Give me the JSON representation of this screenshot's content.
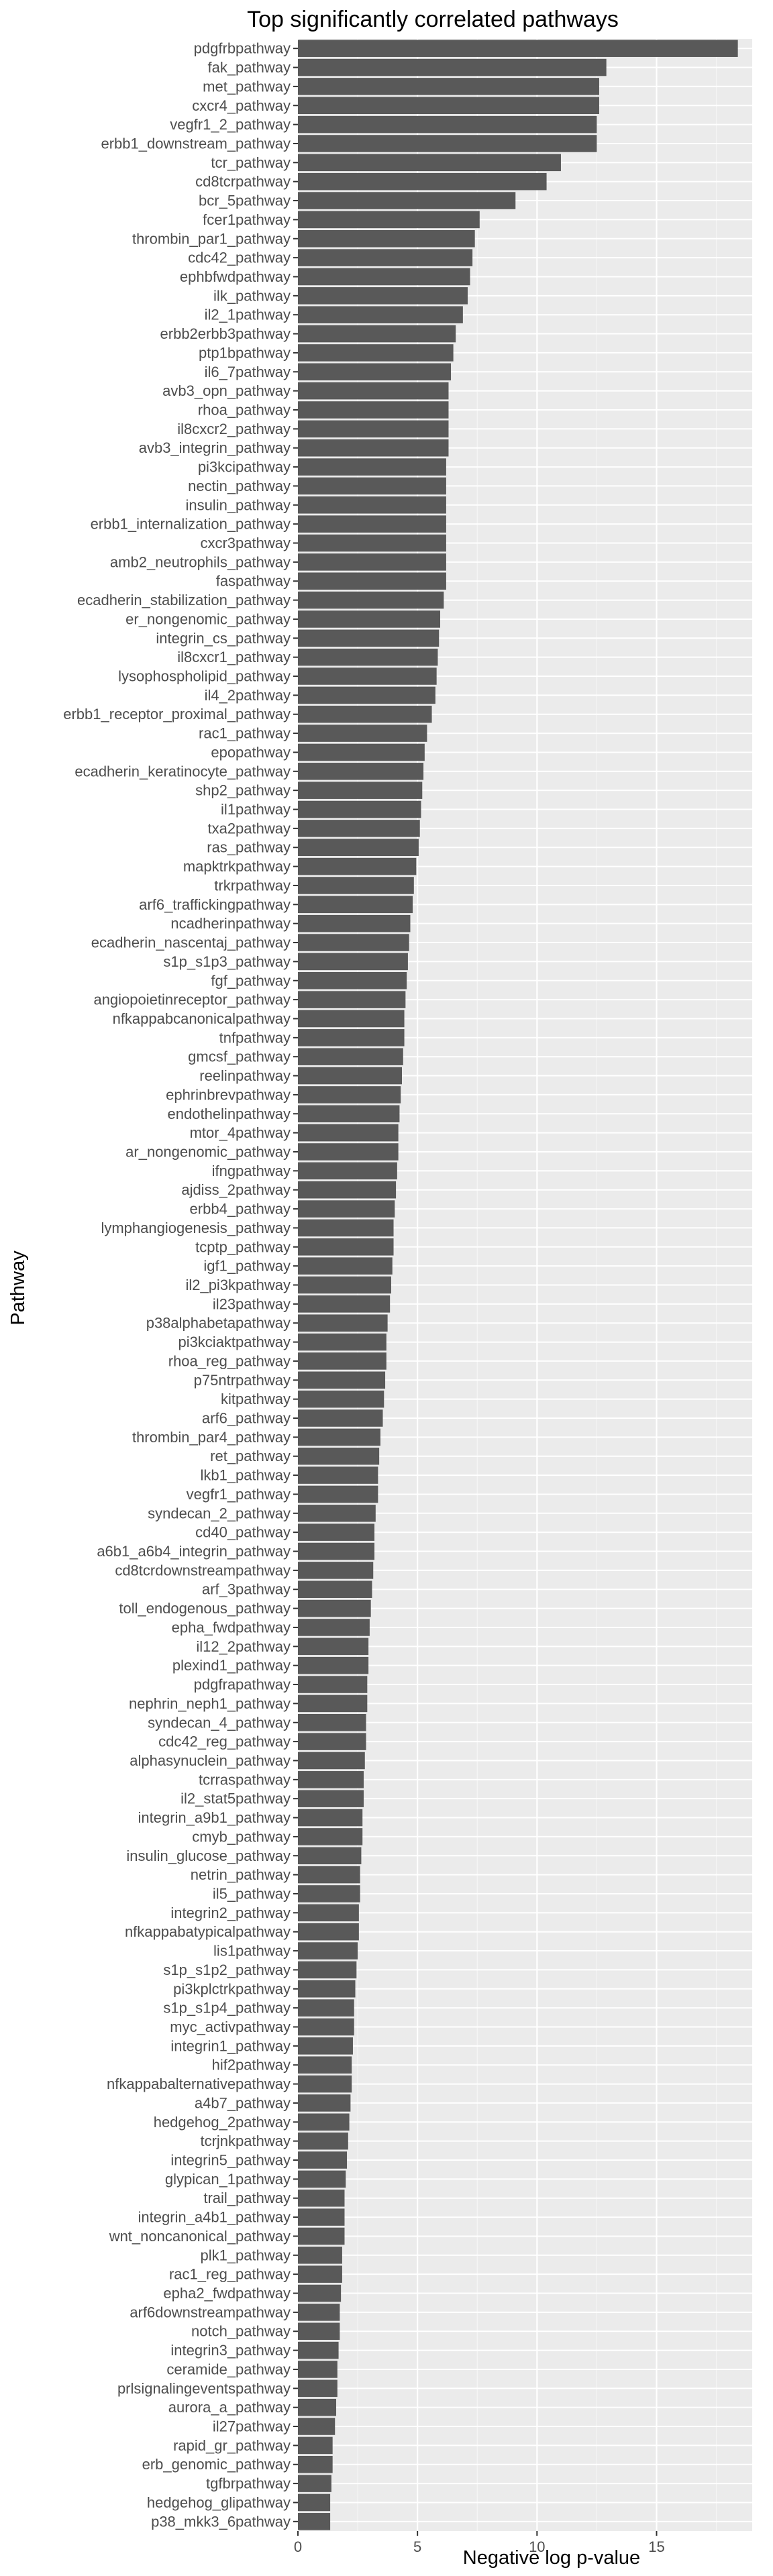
{
  "chart_data": {
    "type": "bar",
    "orientation": "horizontal",
    "title": "Top significantly correlated pathways",
    "xlabel": "Negative log p-value",
    "ylabel": "Pathway",
    "xlim": [
      0,
      19
    ],
    "x_ticks": [
      "0",
      "5",
      "10",
      "15"
    ],
    "grid": true,
    "legend": "none",
    "colors": {
      "bar": "#595959",
      "panel": "#ebebeb",
      "grid_major": "#ffffff",
      "grid_minor": "#f5f5f5"
    },
    "categories": [
      "pdgfrbpathway",
      "fak_pathway",
      "met_pathway",
      "cxcr4_pathway",
      "vegfr1_2_pathway",
      "erbb1_downstream_pathway",
      "tcr_pathway",
      "cd8tcrpathway",
      "bcr_5pathway",
      "fcer1pathway",
      "thrombin_par1_pathway",
      "cdc42_pathway",
      "ephbfwdpathway",
      "ilk_pathway",
      "il2_1pathway",
      "erbb2erbb3pathway",
      "ptp1bpathway",
      "il6_7pathway",
      "avb3_opn_pathway",
      "rhoa_pathway",
      "il8cxcr2_pathway",
      "avb3_integrin_pathway",
      "pi3kcipathway",
      "nectin_pathway",
      "insulin_pathway",
      "erbb1_internalization_pathway",
      "cxcr3pathway",
      "amb2_neutrophils_pathway",
      "faspathway",
      "ecadherin_stabilization_pathway",
      "er_nongenomic_pathway",
      "integrin_cs_pathway",
      "il8cxcr1_pathway",
      "lysophospholipid_pathway",
      "il4_2pathway",
      "erbb1_receptor_proximal_pathway",
      "rac1_pathway",
      "epopathway",
      "ecadherin_keratinocyte_pathway",
      "shp2_pathway",
      "il1pathway",
      "txa2pathway",
      "ras_pathway",
      "mapktrkpathway",
      "trkrpathway",
      "arf6_traffickingpathway",
      "ncadherinpathway",
      "ecadherin_nascentaj_pathway",
      "s1p_s1p3_pathway",
      "fgf_pathway",
      "angiopoietinreceptor_pathway",
      "nfkappabcanonicalpathway",
      "tnfpathway",
      "gmcsf_pathway",
      "reelinpathway",
      "ephrinbrevpathway",
      "endothelinpathway",
      "mtor_4pathway",
      "ar_nongenomic_pathway",
      "ifngpathway",
      "ajdiss_2pathway",
      "erbb4_pathway",
      "lymphangiogenesis_pathway",
      "tcptp_pathway",
      "igf1_pathway",
      "il2_pi3kpathway",
      "il23pathway",
      "p38alphabetapathway",
      "pi3kciaktpathway",
      "rhoa_reg_pathway",
      "p75ntrpathway",
      "kitpathway",
      "arf6_pathway",
      "thrombin_par4_pathway",
      "ret_pathway",
      "lkb1_pathway",
      "vegfr1_pathway",
      "syndecan_2_pathway",
      "cd40_pathway",
      "a6b1_a6b4_integrin_pathway",
      "cd8tcrdownstreampathway",
      "arf_3pathway",
      "toll_endogenous_pathway",
      "epha_fwdpathway",
      "il12_2pathway",
      "plexind1_pathway",
      "pdgfrapathway",
      "nephrin_neph1_pathway",
      "syndecan_4_pathway",
      "cdc42_reg_pathway",
      "alphasynuclein_pathway",
      "tcrraspathway",
      "il2_stat5pathway",
      "integrin_a9b1_pathway",
      "cmyb_pathway",
      "insulin_glucose_pathway",
      "netrin_pathway",
      "il5_pathway",
      "integrin2_pathway",
      "nfkappabatypicalpathway",
      "lis1pathway",
      "s1p_s1p2_pathway",
      "pi3kplctrkpathway",
      "s1p_s1p4_pathway",
      "myc_activpathway",
      "integrin1_pathway",
      "hif2pathway",
      "nfkappabalternativepathway",
      "a4b7_pathway",
      "hedgehog_2pathway",
      "tcrjnkpathway",
      "integrin5_pathway",
      "glypican_1pathway",
      "trail_pathway",
      "integrin_a4b1_pathway",
      "wnt_noncanonical_pathway",
      "plk1_pathway",
      "rac1_reg_pathway",
      "epha2_fwdpathway",
      "arf6downstreampathway",
      "notch_pathway",
      "integrin3_pathway",
      "ceramide_pathway",
      "prlsignalingeventspathway",
      "aurora_a_pathway",
      "il27pathway",
      "rapid_gr_pathway",
      "erb_genomic_pathway",
      "tgfbrpathway",
      "hedgehog_glipathway",
      "p38_mkk3_6pathway"
    ],
    "values": [
      18.4,
      12.9,
      12.6,
      12.6,
      12.5,
      12.5,
      11.0,
      10.4,
      9.1,
      7.6,
      7.4,
      7.3,
      7.2,
      7.1,
      6.9,
      6.6,
      6.5,
      6.4,
      6.3,
      6.3,
      6.3,
      6.3,
      6.2,
      6.2,
      6.2,
      6.2,
      6.2,
      6.2,
      6.2,
      6.1,
      5.95,
      5.9,
      5.85,
      5.8,
      5.75,
      5.6,
      5.4,
      5.3,
      5.25,
      5.2,
      5.15,
      5.1,
      5.05,
      4.95,
      4.85,
      4.8,
      4.7,
      4.65,
      4.6,
      4.55,
      4.5,
      4.45,
      4.45,
      4.4,
      4.35,
      4.3,
      4.25,
      4.2,
      4.2,
      4.15,
      4.1,
      4.05,
      4.0,
      4.0,
      3.95,
      3.9,
      3.85,
      3.75,
      3.7,
      3.7,
      3.65,
      3.6,
      3.55,
      3.45,
      3.4,
      3.35,
      3.35,
      3.25,
      3.2,
      3.2,
      3.15,
      3.1,
      3.05,
      3.0,
      2.95,
      2.95,
      2.9,
      2.9,
      2.85,
      2.85,
      2.8,
      2.75,
      2.75,
      2.7,
      2.7,
      2.65,
      2.6,
      2.6,
      2.55,
      2.55,
      2.5,
      2.45,
      2.4,
      2.35,
      2.35,
      2.3,
      2.25,
      2.25,
      2.2,
      2.15,
      2.1,
      2.05,
      2.0,
      1.95,
      1.95,
      1.95,
      1.85,
      1.85,
      1.8,
      1.75,
      1.75,
      1.7,
      1.65,
      1.65,
      1.6,
      1.55,
      1.45,
      1.45,
      1.4,
      1.35,
      1.35
    ]
  }
}
